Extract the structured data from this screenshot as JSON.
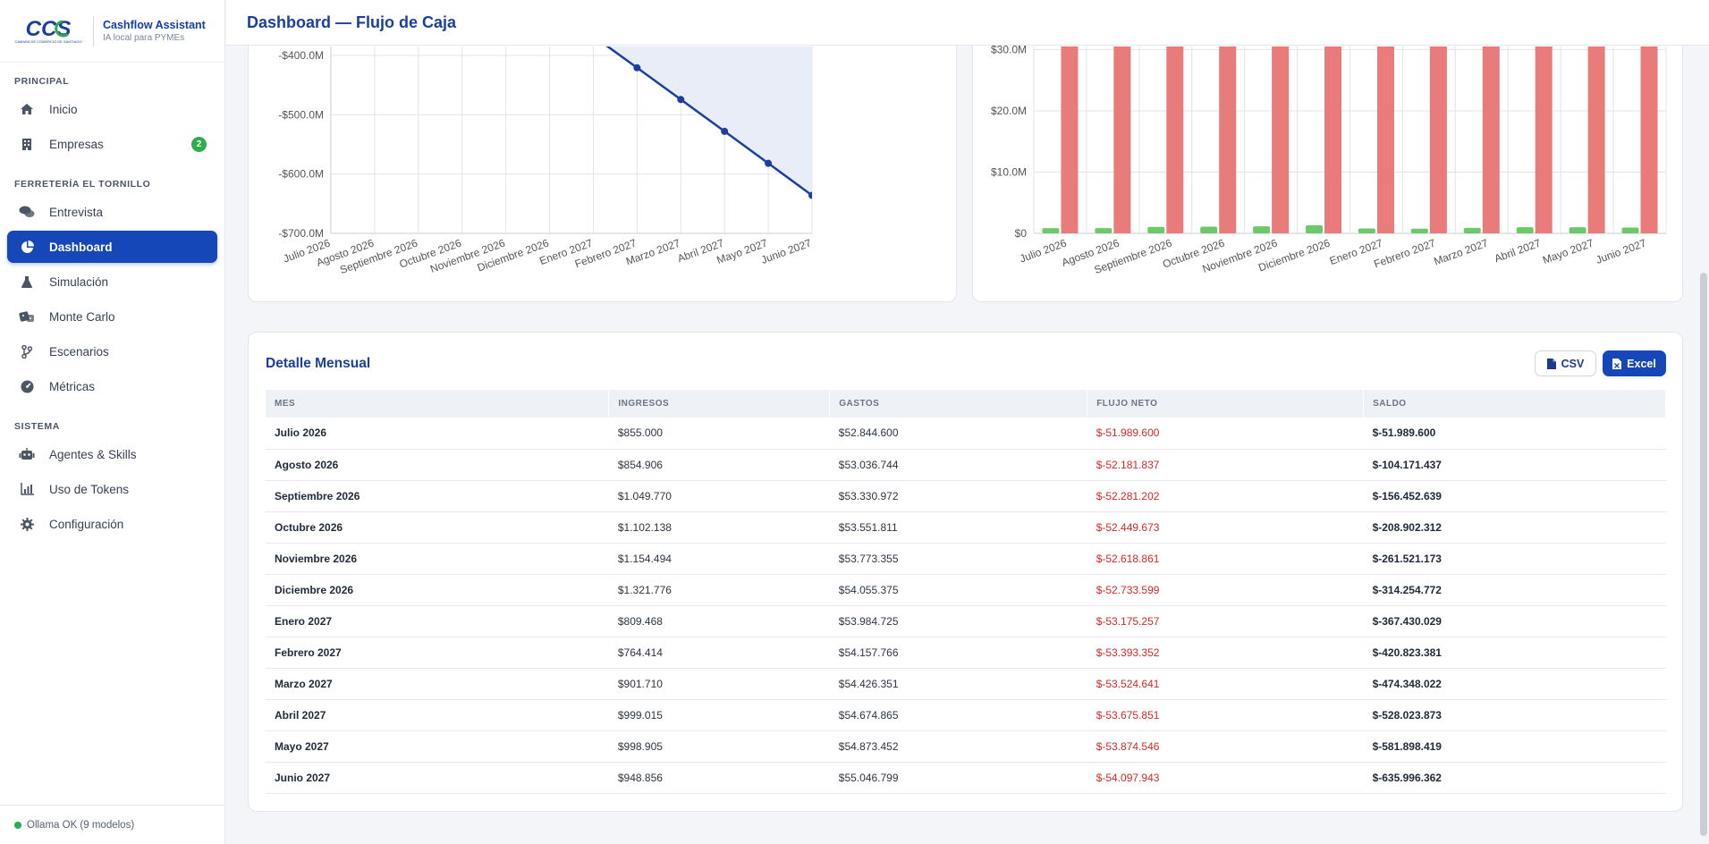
{
  "brand": {
    "logo_text": "CCS",
    "logo_subtext": "CAMARA DE COMERCIO DE SANTIAGO",
    "title": "Cashflow Assistant",
    "subtitle": "IA local para PYMEs"
  },
  "sidebar": {
    "sections": [
      {
        "label": "PRINCIPAL"
      },
      {
        "label": "FERRETERÍA EL TORNILLO"
      },
      {
        "label": "SISTEMA"
      }
    ],
    "items": [
      {
        "label": "Inicio",
        "icon": "home-icon"
      },
      {
        "label": "Empresas",
        "icon": "building-icon",
        "badge": "2"
      },
      {
        "label": "Entrevista",
        "icon": "chat-icon"
      },
      {
        "label": "Dashboard",
        "icon": "pie-chart-icon",
        "active": true
      },
      {
        "label": "Simulación",
        "icon": "flask-icon"
      },
      {
        "label": "Monte Carlo",
        "icon": "dice-icon"
      },
      {
        "label": "Escenarios",
        "icon": "branch-icon"
      },
      {
        "label": "Métricas",
        "icon": "gauge-icon"
      },
      {
        "label": "Agentes & Skills",
        "icon": "robot-icon"
      },
      {
        "label": "Uso de Tokens",
        "icon": "bar-chart-icon"
      },
      {
        "label": "Configuración",
        "icon": "gear-icon"
      }
    ],
    "footer_status": "Ollama OK (9 modelos)"
  },
  "header": {
    "title": "Dashboard — Flujo de Caja"
  },
  "chart_data": [
    {
      "type": "line",
      "title": "",
      "x": [
        "Julio 2026",
        "Agosto 2026",
        "Septiembre 2026",
        "Octubre 2026",
        "Noviembre 2026",
        "Diciembre 2026",
        "Enero 2027",
        "Febrero 2027",
        "Marzo 2027",
        "Abril 2027",
        "Mayo 2027",
        "Junio 2027"
      ],
      "series": [
        {
          "values": [
            -51.99,
            -104.17,
            -156.45,
            -208.9,
            -261.52,
            -314.25,
            -367.43,
            -420.82,
            -474.35,
            -528.02,
            -581.9,
            -636.0
          ]
        }
      ],
      "y_tick_labels": [
        "-$400.0M",
        "-$500.0M",
        "-$600.0M",
        "-$700.0M"
      ],
      "y_visible_range": [
        -700,
        -385
      ],
      "fill": "area-below-zero",
      "color": "#1a3fa0",
      "grid": true
    },
    {
      "type": "bar",
      "title": "",
      "categories": [
        "Julio 2026",
        "Agosto 2026",
        "Septiembre 2026",
        "Octubre 2026",
        "Noviembre 2026",
        "Diciembre 2026",
        "Enero 2027",
        "Febrero 2027",
        "Marzo 2027",
        "Abril 2027",
        "Mayo 2027",
        "Junio 2027"
      ],
      "series": [
        {
          "values": [
            0.855,
            0.855,
            1.05,
            1.102,
            1.154,
            1.322,
            0.809,
            0.764,
            0.902,
            0.999,
            0.999,
            0.949
          ],
          "color": "#6cc96a"
        },
        {
          "values": [
            52.84,
            53.04,
            53.33,
            53.55,
            53.77,
            54.06,
            53.98,
            54.16,
            54.43,
            54.67,
            54.87,
            55.05
          ],
          "color": "#e97b7b"
        }
      ],
      "y_tick_labels": [
        "$0",
        "$10.0M",
        "$20.0M",
        "$30.0M"
      ],
      "y_visible_range": [
        0,
        30.5
      ],
      "grid": true
    }
  ],
  "table": {
    "title": "Detalle Mensual",
    "csv_label": "CSV",
    "excel_label": "Excel",
    "columns": [
      "MES",
      "INGRESOS",
      "GASTOS",
      "FLUJO NETO",
      "SALDO"
    ],
    "rows": [
      [
        "Julio 2026",
        "$855.000",
        "$52.844.600",
        "$-51.989.600",
        "$-51.989.600"
      ],
      [
        "Agosto 2026",
        "$854.906",
        "$53.036.744",
        "$-52.181.837",
        "$-104.171.437"
      ],
      [
        "Septiembre 2026",
        "$1.049.770",
        "$53.330.972",
        "$-52.281.202",
        "$-156.452.639"
      ],
      [
        "Octubre 2026",
        "$1.102.138",
        "$53.551.811",
        "$-52.449.673",
        "$-208.902.312"
      ],
      [
        "Noviembre 2026",
        "$1.154.494",
        "$53.773.355",
        "$-52.618.861",
        "$-261.521.173"
      ],
      [
        "Diciembre 2026",
        "$1.321.776",
        "$54.055.375",
        "$-52.733.599",
        "$-314.254.772"
      ],
      [
        "Enero 2027",
        "$809.468",
        "$53.984.725",
        "$-53.175.257",
        "$-367.430.029"
      ],
      [
        "Febrero 2027",
        "$764.414",
        "$54.157.766",
        "$-53.393.352",
        "$-420.823.381"
      ],
      [
        "Marzo 2027",
        "$901.710",
        "$54.426.351",
        "$-53.524.641",
        "$-474.348.022"
      ],
      [
        "Abril 2027",
        "$999.015",
        "$54.674.865",
        "$-53.675.851",
        "$-528.023.873"
      ],
      [
        "Mayo 2027",
        "$998.905",
        "$54.873.452",
        "$-53.874.546",
        "$-581.898.419"
      ],
      [
        "Junio 2027",
        "$948.856",
        "$55.046.799",
        "$-54.097.943",
        "$-635.996.362"
      ]
    ]
  }
}
